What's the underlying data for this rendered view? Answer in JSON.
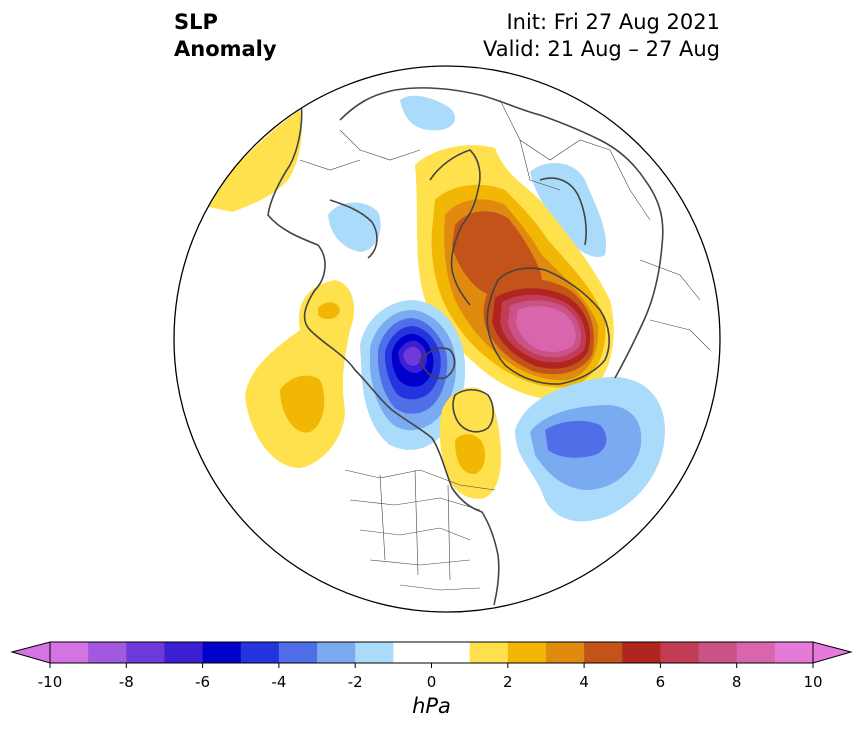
{
  "title": {
    "line1": "SLP",
    "line2": "Anomaly",
    "init": "Init: Fri 27 Aug 2021",
    "valid": "Valid: 21 Aug – 27 Aug"
  },
  "colorbar": {
    "unit": "hPa",
    "min": -10,
    "max": 10,
    "tick_labels": [
      "-10",
      "-8",
      "-6",
      "-4",
      "-2",
      "0",
      "2",
      "4",
      "6",
      "8",
      "10"
    ],
    "colors": [
      "#d473e2",
      "#a259e0",
      "#6e3ad9",
      "#3d1fd3",
      "#0000cc",
      "#2535dd",
      "#4f6ee8",
      "#7aaaf0",
      "#abdbfb",
      "#ffffff",
      "#ffffff",
      "#ffe14d",
      "#f2b705",
      "#e08b0f",
      "#c4531a",
      "#b0261f",
      "#c23c55",
      "#cb5287",
      "#d966ad",
      "#e67ad8"
    ],
    "extend_low_color": "#d473e2",
    "extend_high_color": "#e67ad8"
  },
  "map": {
    "projection": "north polar stereographic",
    "features": [
      {
        "name": "positive-anomaly-greenland-atlantic",
        "max_hpa": 10
      },
      {
        "name": "negative-anomaly-beaufort-sea",
        "min_hpa": -6
      },
      {
        "name": "negative-anomaly-north-atlantic",
        "min_hpa": -4
      },
      {
        "name": "positive-anomaly-north-pacific",
        "max_hpa": 2
      },
      {
        "name": "positive-anomaly-hudson-bay",
        "max_hpa": 2
      }
    ]
  }
}
